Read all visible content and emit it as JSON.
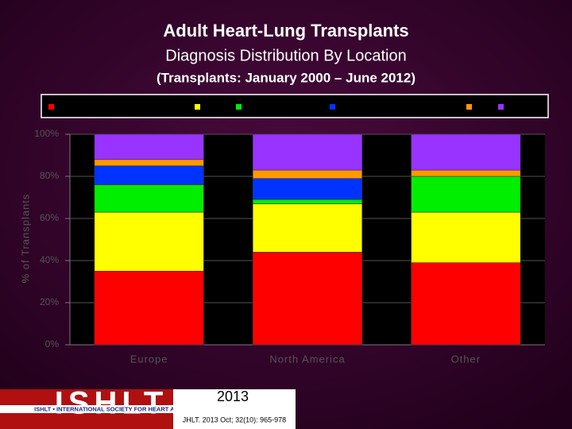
{
  "chart_data": {
    "type": "stacked_bar",
    "title": "Adult Heart-Lung Transplants",
    "subtitle": "Diagnosis Distribution By Location",
    "note": "(Transplants: January 2000 – June 2012)",
    "y_label": "% of Transplants",
    "categories": [
      "Europe",
      "North America",
      "Other"
    ],
    "series": [
      {
        "color": "#ff0000",
        "values": [
          35,
          44,
          39
        ]
      },
      {
        "color": "#ffff00",
        "values": [
          28,
          23,
          24
        ]
      },
      {
        "color": "#00ee00",
        "values": [
          13,
          2,
          17
        ]
      },
      {
        "color": "#0033ff",
        "values": [
          9,
          10,
          0
        ]
      },
      {
        "color": "#ff9900",
        "values": [
          3,
          4,
          3
        ]
      },
      {
        "color": "#9933ff",
        "values": [
          12,
          17,
          17
        ]
      }
    ],
    "ylim": [
      0,
      100
    ],
    "yticks": [
      {
        "value": 0,
        "label": "0%"
      },
      {
        "value": 20,
        "label": "20%"
      },
      {
        "value": 40,
        "label": "40%"
      },
      {
        "value": 60,
        "label": "60%"
      },
      {
        "value": 80,
        "label": "80%"
      },
      {
        "value": 100,
        "label": "100%"
      }
    ],
    "grid": true
  },
  "footer": {
    "logo": "ISHLT",
    "society": "ISHLT • INTERNATIONAL SOCIETY FOR HEART AND LUNG TRANSPLANTATION",
    "year": "2013",
    "citation": "JHLT. 2013 Oct; 32(10): 965-978"
  }
}
